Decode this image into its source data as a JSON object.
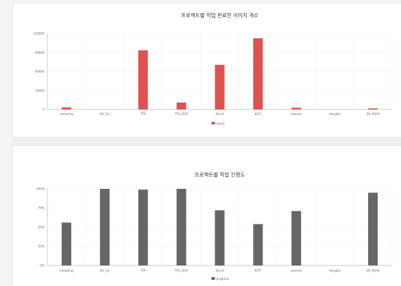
{
  "chart_data": [
    {
      "type": "bar",
      "title": "프로젝트별 작업 완료한 이미지 개수",
      "categories": [
        "sampling",
        "DV_GL",
        "TTA",
        "TTA_OCR",
        "De-id",
        "KETI",
        "aiworks",
        "dongbu",
        "DV_M2AI"
      ],
      "series": [
        {
          "name": "count",
          "values": [
            3200,
            0,
            93500,
            11000,
            70500,
            112500,
            2800,
            0,
            1800
          ],
          "color": "#e05252"
        }
      ],
      "yticks": [
        "0",
        "30000",
        "60000",
        "90000",
        "120000"
      ],
      "ylim": [
        0,
        120000
      ],
      "grid": true,
      "legend": "bottom-center"
    },
    {
      "type": "bar",
      "title": "프로젝트별 작업 진행도",
      "categories": [
        "sampling",
        "DV_GL",
        "TTA",
        "TTA_OCR",
        "De-id",
        "KETI",
        "aiworks",
        "dongbu",
        "DV_M2AI"
      ],
      "series": [
        {
          "name": "progress",
          "values": [
            0.56,
            1.0,
            0.99,
            1.0,
            0.72,
            0.54,
            0.71,
            0,
            0.95
          ],
          "color": "#666666"
        }
      ],
      "yticks": [
        "0%",
        "25%",
        "50%",
        "75%",
        "100%"
      ],
      "ylim": [
        0,
        1
      ],
      "grid": true,
      "legend": "bottom-center"
    }
  ]
}
